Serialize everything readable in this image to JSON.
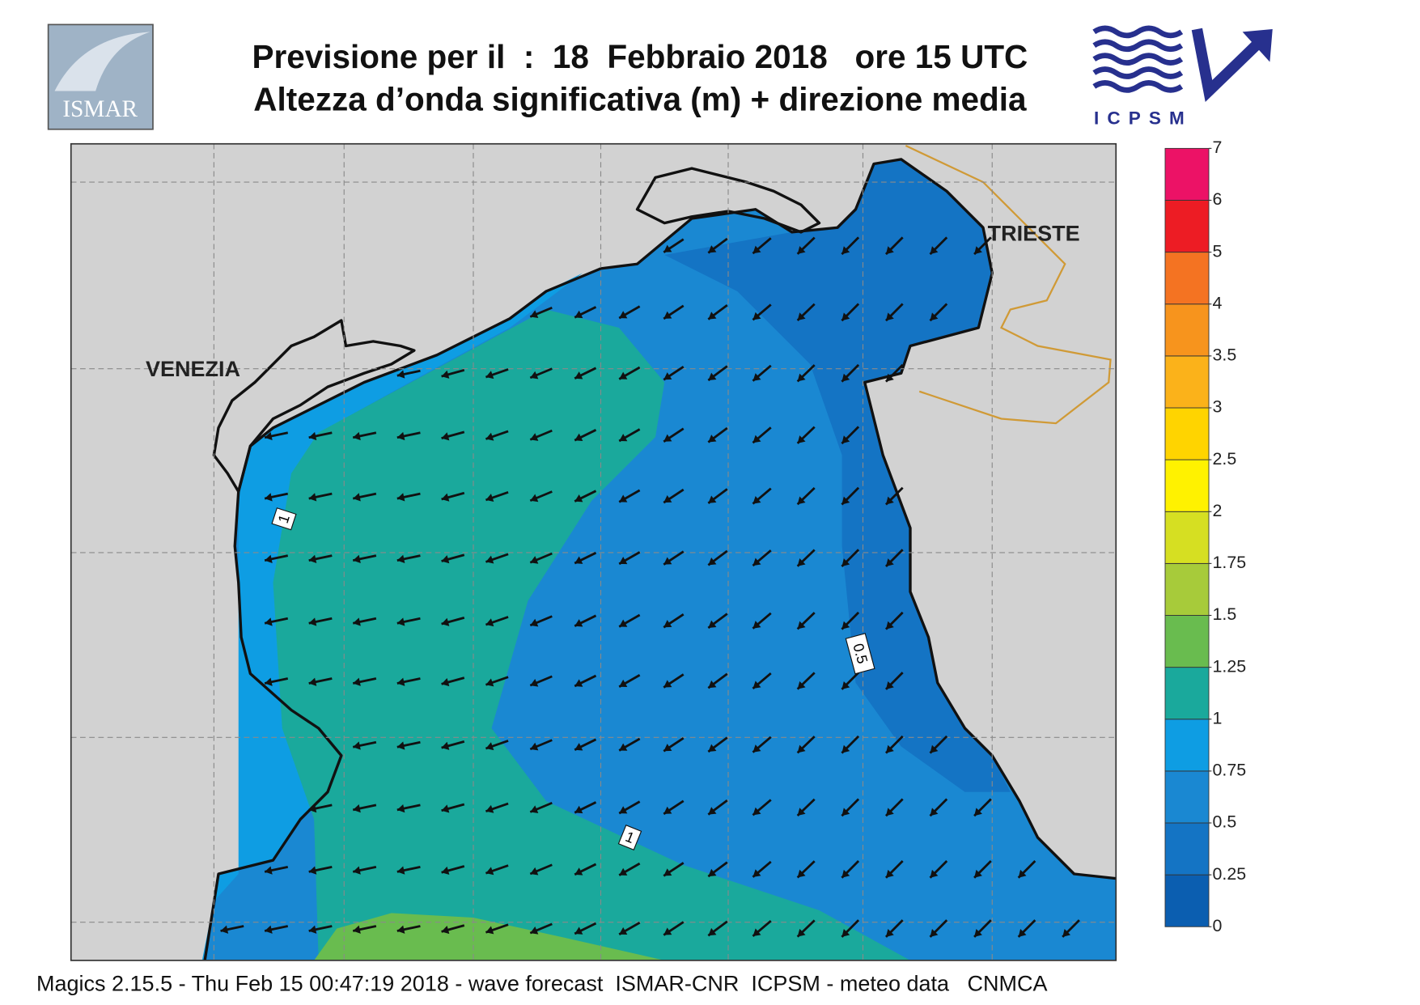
{
  "header": {
    "title_line1": "Previsione per il  :  18  Febbraio 2018   ore 15 UTC",
    "title_line2": "Altezza d’onda significativa (m) + direzione media"
  },
  "logos": {
    "left": "ISMAR",
    "right": "ICPSM"
  },
  "map": {
    "place_labels": [
      "VENEZIA",
      "TRIESTE"
    ],
    "contour_labels": [
      "1",
      "0.5",
      "1"
    ]
  },
  "colorbar": {
    "ticks": [
      0,
      0.25,
      0.5,
      0.75,
      1,
      1.25,
      1.5,
      1.75,
      2,
      2.5,
      3,
      3.5,
      4,
      5,
      6,
      7
    ],
    "colors": [
      "#0b5eb0",
      "#1474c4",
      "#1a88d2",
      "#0e9de3",
      "#1aa99c",
      "#69bc4f",
      "#a7cb3a",
      "#d6df22",
      "#fff200",
      "#ffd400",
      "#fbb21a",
      "#f7941d",
      "#f47322",
      "#ed1c24",
      "#ec1266"
    ]
  },
  "footer": "Magics 2.15.5 - Thu Feb 15 00:47:19 2018 - wave forecast  ISMAR-CNR  ICPSM - meteo data   CNMCA"
}
